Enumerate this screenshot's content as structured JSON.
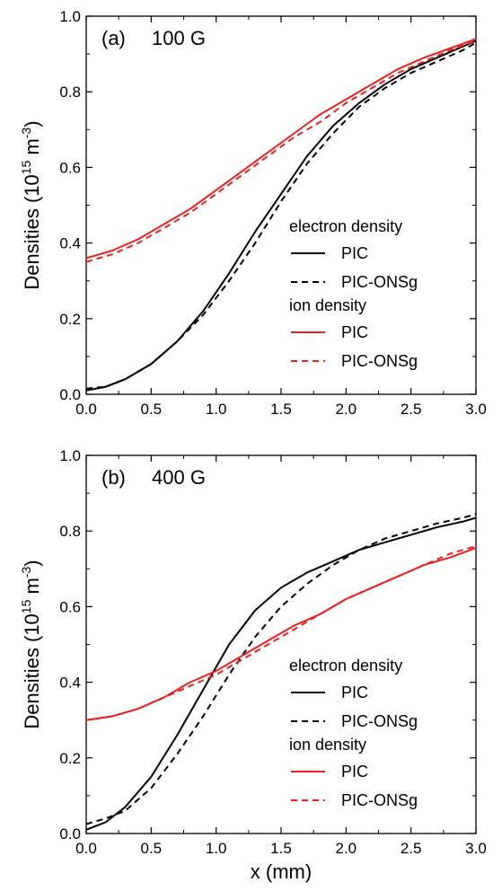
{
  "chart_data": [
    {
      "type": "line",
      "panel_label": "(a)",
      "field_label": "100 G",
      "xlabel": "",
      "ylabel": "Densities (10",
      "ylabel_sup1": "15",
      "ylabel_mid": " m",
      "ylabel_sup2": "-3",
      "ylabel_end": ")",
      "xlim": [
        0.0,
        3.0
      ],
      "ylim": [
        0.0,
        1.0
      ],
      "xticks": [
        "0.0",
        "0.5",
        "1.0",
        "1.5",
        "2.0",
        "2.5",
        "3.0"
      ],
      "yticks": [
        "0.0",
        "0.2",
        "0.4",
        "0.6",
        "0.8",
        "1.0"
      ],
      "legend": {
        "group1_title": "electron density",
        "group2_title": "ion density",
        "entry_solid": "PIC",
        "entry_dashed": "PIC-ONSg"
      },
      "colors": {
        "electron": "#000000",
        "ion": "#e8211d"
      },
      "series": [
        {
          "name": "electron density PIC",
          "style": "solid",
          "color": "#000000",
          "x": [
            0.0,
            0.15,
            0.3,
            0.5,
            0.7,
            0.9,
            1.1,
            1.3,
            1.5,
            1.7,
            1.9,
            2.1,
            2.3,
            2.5,
            2.7,
            2.9,
            3.0
          ],
          "y": [
            0.01,
            0.02,
            0.04,
            0.08,
            0.14,
            0.22,
            0.32,
            0.43,
            0.53,
            0.63,
            0.71,
            0.77,
            0.82,
            0.86,
            0.89,
            0.92,
            0.935
          ]
        },
        {
          "name": "electron density PIC-ONSg",
          "style": "dashed",
          "color": "#000000",
          "x": [
            0.0,
            0.15,
            0.3,
            0.5,
            0.7,
            0.9,
            1.1,
            1.3,
            1.5,
            1.7,
            1.9,
            2.1,
            2.3,
            2.5,
            2.7,
            2.9,
            3.0
          ],
          "y": [
            0.015,
            0.02,
            0.04,
            0.08,
            0.14,
            0.21,
            0.3,
            0.4,
            0.51,
            0.61,
            0.69,
            0.76,
            0.81,
            0.85,
            0.88,
            0.91,
            0.93
          ]
        },
        {
          "name": "ion density PIC",
          "style": "solid",
          "color": "#e8211d",
          "x": [
            0.0,
            0.2,
            0.4,
            0.6,
            0.8,
            1.0,
            1.2,
            1.4,
            1.6,
            1.8,
            2.0,
            2.2,
            2.4,
            2.6,
            2.8,
            3.0
          ],
          "y": [
            0.36,
            0.38,
            0.41,
            0.45,
            0.49,
            0.54,
            0.59,
            0.64,
            0.69,
            0.74,
            0.78,
            0.82,
            0.86,
            0.89,
            0.915,
            0.94
          ]
        },
        {
          "name": "ion density PIC-ONSg",
          "style": "dashed",
          "color": "#e8211d",
          "x": [
            0.0,
            0.2,
            0.4,
            0.6,
            0.8,
            1.0,
            1.2,
            1.4,
            1.6,
            1.8,
            2.0,
            2.2,
            2.4,
            2.6,
            2.8,
            3.0
          ],
          "y": [
            0.35,
            0.37,
            0.4,
            0.44,
            0.48,
            0.53,
            0.58,
            0.63,
            0.68,
            0.72,
            0.77,
            0.81,
            0.85,
            0.88,
            0.91,
            0.935
          ]
        }
      ]
    },
    {
      "type": "line",
      "panel_label": "(b)",
      "field_label": "400 G",
      "xlabel": "x (mm)",
      "ylabel": "Densities (10",
      "ylabel_sup1": "15",
      "ylabel_mid": " m",
      "ylabel_sup2": "-3",
      "ylabel_end": ")",
      "xlim": [
        0.0,
        3.0
      ],
      "ylim": [
        0.0,
        1.0
      ],
      "xticks": [
        "0.0",
        "0.5",
        "1.0",
        "1.5",
        "2.0",
        "2.5",
        "3.0"
      ],
      "yticks": [
        "0.0",
        "0.2",
        "0.4",
        "0.6",
        "0.8",
        "1.0"
      ],
      "legend": {
        "group1_title": "electron density",
        "group2_title": "ion density",
        "entry_solid": "PIC",
        "entry_dashed": "PIC-ONSg"
      },
      "colors": {
        "electron": "#000000",
        "ion": "#e8211d"
      },
      "series": [
        {
          "name": "electron density PIC",
          "style": "solid",
          "color": "#000000",
          "x": [
            0.0,
            0.15,
            0.3,
            0.5,
            0.7,
            0.9,
            1.1,
            1.3,
            1.5,
            1.7,
            1.9,
            2.1,
            2.3,
            2.5,
            2.7,
            2.9,
            3.0
          ],
          "y": [
            0.01,
            0.03,
            0.07,
            0.15,
            0.26,
            0.38,
            0.5,
            0.59,
            0.65,
            0.69,
            0.72,
            0.75,
            0.77,
            0.79,
            0.81,
            0.825,
            0.835
          ]
        },
        {
          "name": "electron density PIC-ONSg",
          "style": "dashed",
          "color": "#000000",
          "x": [
            0.0,
            0.15,
            0.3,
            0.5,
            0.7,
            0.9,
            1.1,
            1.3,
            1.5,
            1.7,
            1.9,
            2.1,
            2.3,
            2.5,
            2.7,
            2.9,
            3.0
          ],
          "y": [
            0.025,
            0.04,
            0.06,
            0.12,
            0.21,
            0.31,
            0.42,
            0.52,
            0.6,
            0.66,
            0.71,
            0.75,
            0.78,
            0.8,
            0.82,
            0.835,
            0.845
          ]
        },
        {
          "name": "ion density PIC",
          "style": "solid",
          "color": "#e8211d",
          "x": [
            0.0,
            0.2,
            0.4,
            0.6,
            0.8,
            1.0,
            1.2,
            1.4,
            1.6,
            1.8,
            2.0,
            2.2,
            2.4,
            2.6,
            2.8,
            3.0
          ],
          "y": [
            0.3,
            0.31,
            0.33,
            0.36,
            0.4,
            0.43,
            0.47,
            0.51,
            0.55,
            0.58,
            0.62,
            0.65,
            0.68,
            0.71,
            0.73,
            0.755
          ]
        },
        {
          "name": "ion density PIC-ONSg",
          "style": "dashed",
          "color": "#e8211d",
          "x": [
            0.0,
            0.2,
            0.4,
            0.6,
            0.8,
            1.0,
            1.2,
            1.4,
            1.6,
            1.8,
            2.0,
            2.2,
            2.4,
            2.6,
            2.8,
            3.0
          ],
          "y": [
            0.3,
            0.31,
            0.33,
            0.36,
            0.39,
            0.42,
            0.46,
            0.5,
            0.54,
            0.58,
            0.62,
            0.65,
            0.68,
            0.71,
            0.74,
            0.76
          ]
        }
      ]
    }
  ]
}
